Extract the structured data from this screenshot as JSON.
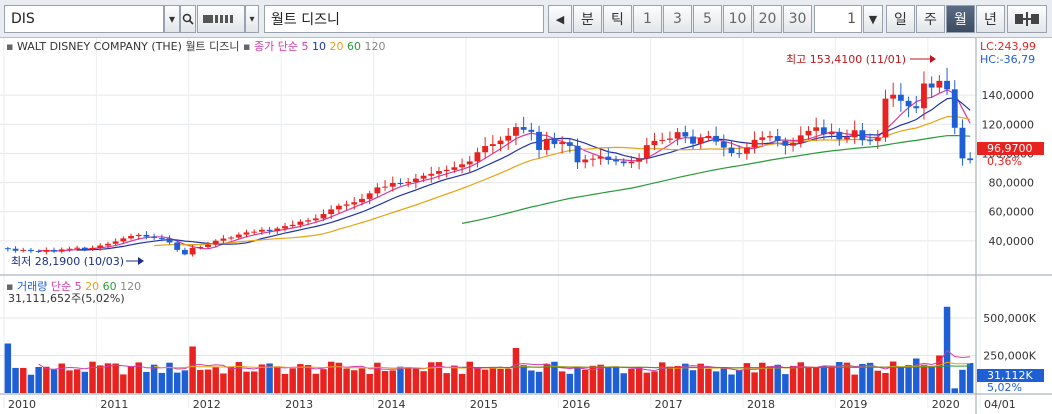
{
  "toolbar": {
    "symbol": "DIS",
    "name": "월트 디즈니",
    "buttons": [
      "분",
      "틱",
      "1",
      "3",
      "5",
      "10",
      "20",
      "30"
    ],
    "interval_value": "1",
    "periods": [
      "일",
      "주",
      "월",
      "년"
    ],
    "active_period": "월"
  },
  "chart_data": {
    "type": "candlestick",
    "title": "WALT DISNEY COMPANY (THE)",
    "title_kr": "월트 디즈니",
    "ma_label": "종가 단순",
    "ma_periods": [
      "5",
      "10",
      "20",
      "60",
      "120"
    ],
    "colors": {
      "up": "#e8231f",
      "down": "#1f5fd6",
      "ma5": "#d43ca8",
      "ma10": "#2233aa",
      "ma20": "#e8a317",
      "ma60": "#2a9a3a",
      "ma120": "#888888"
    },
    "y_ticks": [
      40000,
      60000,
      80000,
      100000,
      120000,
      140000
    ],
    "y_tick_labels": [
      "40,0000",
      "60,0000",
      "80,0000",
      "100,0000",
      "120,0000",
      "140,0000"
    ],
    "ylim": [
      20000,
      160000
    ],
    "lc": "LC:243,99",
    "hc": "HC:-36,79",
    "high_label": "최고 153,4100 (11/01)",
    "low_label": "최저 28,1900 (10/03)",
    "current_price": "96,9700",
    "current_change": "0,36%",
    "x_labels": [
      "2010",
      "2011",
      "2012",
      "2013",
      "2014",
      "2015",
      "2016",
      "2017",
      "2018",
      "2019",
      "2020",
      "04/01"
    ],
    "closes": [
      34.6,
      33.2,
      33.8,
      33.0,
      32.5,
      33.7,
      32.6,
      34.1,
      34.6,
      35.3,
      34.2,
      35.2,
      36.8,
      38.0,
      39.6,
      41.7,
      43.3,
      44.1,
      42.9,
      42.0,
      41.6,
      38.9,
      33.8,
      30.7,
      35.2,
      35.8,
      37.4,
      40.1,
      41.6,
      42.3,
      44.3,
      45.8,
      46.3,
      47.6,
      46.8,
      48.5,
      50.1,
      51.0,
      53.2,
      54.1,
      55.4,
      58.4,
      61.6,
      64.1,
      65.0,
      66.5,
      68.8,
      72.6,
      76.7,
      77.2,
      79.7,
      79.6,
      80.4,
      82.7,
      84.7,
      86.0,
      87.9,
      88.7,
      90.5,
      92.5,
      94.5,
      100.8,
      105.1,
      106.4,
      108.8,
      112.1,
      118.1,
      116.2,
      114.8,
      102.4,
      110.0,
      106.4,
      107.7,
      105.2,
      93.9,
      95.8,
      96.4,
      97.8,
      95.5,
      94.5,
      93.3,
      94.3,
      96.6,
      105.7,
      108.6,
      109.3,
      110.2,
      114.6,
      111.6,
      106.7,
      110.6,
      112.0,
      108.1,
      104.0,
      100.2,
      99.8,
      104.1,
      109.3,
      111.0,
      111.9,
      108.6,
      105.3,
      107.2,
      112.4,
      115.5,
      117.9,
      113.2,
      114.8,
      109.7,
      111.1,
      115.9,
      109.1,
      108.6,
      111.0,
      137.6,
      140.3,
      136.1,
      132.4,
      131.0,
      148.0,
      145.2,
      149.8,
      144.0,
      117.6,
      96.6,
      95.4
    ],
    "volume": {
      "label": "거래량",
      "ma_label": "단순",
      "ma_periods": [
        "5",
        "20",
        "60",
        "120"
      ],
      "info": "31,111,652주(5,02%)",
      "y_ticks": [
        250000,
        500000
      ],
      "y_tick_labels": [
        "250,000K",
        "500,000K"
      ],
      "ylim": [
        0,
        620000
      ],
      "current": "31,112K",
      "current_pct": "5,02%"
    }
  }
}
